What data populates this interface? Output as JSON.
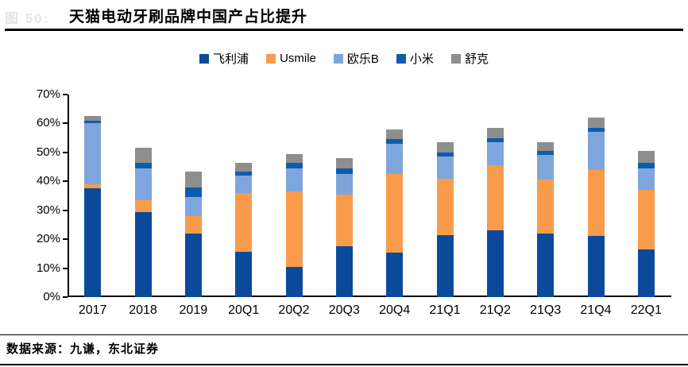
{
  "figure_label": "图 50:",
  "title": "天猫电动牙刷品牌中国产占比提升",
  "source": "数据来源：九谦，东北证券",
  "colors": {
    "axis": "#000000",
    "title_rule": "#000000",
    "faint_label": "#e4e4e4"
  },
  "chart_data": {
    "type": "bar",
    "stacked": true,
    "title": "天猫电动牙刷品牌中国产占比提升",
    "xlabel": "",
    "ylabel": "",
    "grid": false,
    "legend_position": "top",
    "ylim": [
      0,
      70
    ],
    "yticks": [
      0,
      10,
      20,
      30,
      40,
      50,
      60,
      70
    ],
    "ytick_labels": [
      "0%",
      "10%",
      "20%",
      "30%",
      "40%",
      "50%",
      "60%",
      "70%"
    ],
    "categories": [
      "2017",
      "2018",
      "2019",
      "20Q1",
      "20Q2",
      "20Q3",
      "20Q4",
      "21Q1",
      "21Q2",
      "21Q3",
      "21Q4",
      "22Q1"
    ],
    "series": [
      {
        "name": "飞利浦",
        "color": "#0B4A9B",
        "values": [
          37.5,
          29.5,
          22.0,
          15.5,
          10.5,
          17.5,
          15.5,
          21.5,
          23.0,
          22.0,
          21.0,
          16.5
        ]
      },
      {
        "name": "Usmile",
        "color": "#F89C4C",
        "values": [
          1.5,
          4.0,
          6.0,
          20.5,
          26.0,
          18.0,
          27.0,
          19.5,
          22.5,
          18.5,
          23.0,
          20.5
        ]
      },
      {
        "name": "欧乐B",
        "color": "#7EA6DC",
        "values": [
          21.0,
          11.0,
          6.5,
          6.0,
          8.0,
          7.0,
          10.5,
          7.5,
          8.0,
          8.5,
          13.0,
          7.5
        ]
      },
      {
        "name": "小米",
        "color": "#0E5CAD",
        "values": [
          1.0,
          2.0,
          3.5,
          1.5,
          2.0,
          2.0,
          1.5,
          1.5,
          1.5,
          1.5,
          1.5,
          2.0
        ]
      },
      {
        "name": "舒克",
        "color": "#8E8E8E",
        "values": [
          1.5,
          5.0,
          5.5,
          3.0,
          3.0,
          3.5,
          3.5,
          3.5,
          3.5,
          3.0,
          3.5,
          4.0
        ]
      }
    ]
  }
}
